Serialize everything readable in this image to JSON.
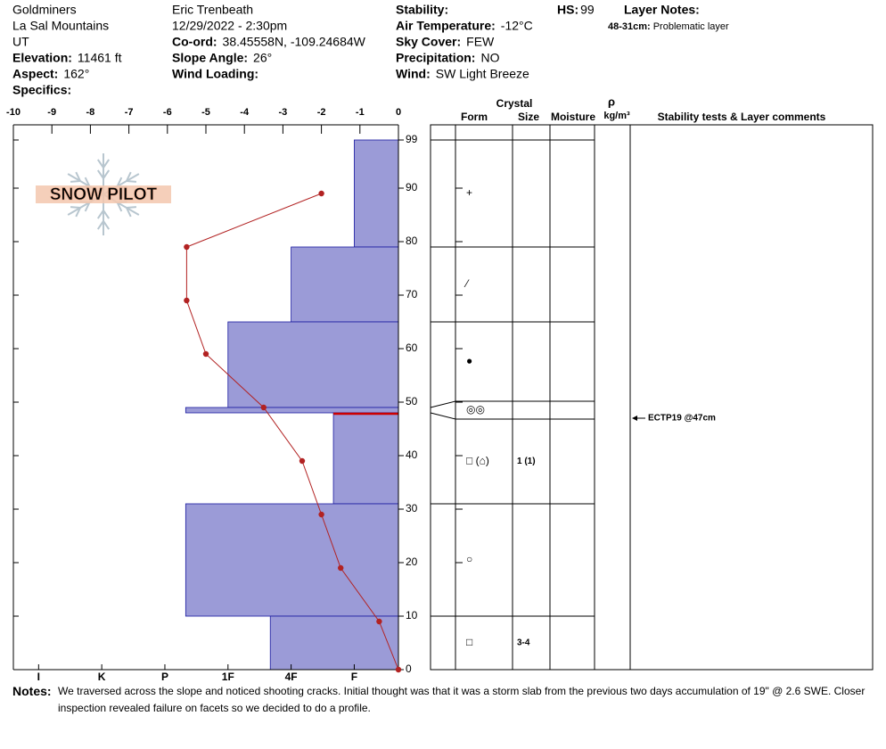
{
  "header": {
    "columns": [
      [
        {
          "value": "Goldminers"
        },
        {
          "value": "La Sal Mountains"
        },
        {
          "value": "UT"
        },
        {
          "label": "Elevation:",
          "value": "11461 ft"
        },
        {
          "label": "Aspect:",
          "value": "162°"
        },
        {
          "label": "Specifics:"
        }
      ],
      [
        {
          "value": "Eric Trenbeath"
        },
        {
          "value": "12/29/2022 - 2:30pm"
        },
        {
          "label": "Co-ord:",
          "value": "38.45558N, -109.24684W"
        },
        {
          "label": "Slope Angle:",
          "value": "26°"
        },
        {
          "label": "Wind Loading:"
        }
      ],
      [
        {
          "label": "Stability:"
        },
        {
          "label": "Air Temperature:",
          "value": "-12°C"
        },
        {
          "label": "Sky Cover:",
          "value": "FEW"
        },
        {
          "label": "Precipitation:",
          "value": "NO"
        },
        {
          "label": "Wind:",
          "value": "SW Light Breeze"
        }
      ]
    ],
    "hs": {
      "label": "HS:",
      "value": "99"
    },
    "layer_notes": {
      "title": "Layer Notes:",
      "items": [
        {
          "depth": "48-31cm:",
          "text": "Problematic layer"
        }
      ]
    }
  },
  "chart_data": {
    "type": "snow-profile",
    "logo": "SNOW PILOT",
    "xlim": [
      -10,
      0
    ],
    "xticks": [
      -10,
      -9,
      -8,
      -7,
      -6,
      -5,
      -4,
      -3,
      -2,
      -1,
      0
    ],
    "ylim": [
      0,
      99
    ],
    "yticks": [
      0,
      10,
      20,
      30,
      40,
      50,
      60,
      70,
      80,
      90,
      99
    ],
    "hardness_lim": [
      6.4,
      0.3
    ],
    "hardness_ticks": [
      {
        "value": 6,
        "label": "I"
      },
      {
        "value": 5,
        "label": "K"
      },
      {
        "value": 4,
        "label": "P"
      },
      {
        "value": 3,
        "label": "1F"
      },
      {
        "value": 2,
        "label": "4F"
      },
      {
        "value": 1,
        "label": "F"
      }
    ],
    "temperature": {
      "color": "#b22222",
      "depth": [
        0,
        9,
        19,
        29,
        39,
        49,
        59,
        69,
        79,
        89
      ],
      "values": [
        0,
        -0.5,
        -1.5,
        -2,
        -2.5,
        -3.5,
        -5,
        -5.5,
        -5.5,
        -2
      ]
    },
    "layers": {
      "color": "#9b9bd7",
      "top": [
        99,
        79,
        65,
        49,
        48,
        31,
        10
      ],
      "bottom": [
        79,
        65,
        49,
        48,
        31,
        10,
        0
      ],
      "hardness": [
        1,
        2,
        3,
        3.67,
        1.33,
        3.67,
        2.33
      ],
      "forms": [
        "+",
        "⁄",
        "●",
        "◎◎",
        "□ (⌂)",
        "○",
        "□"
      ],
      "sizes": [
        null,
        null,
        null,
        null,
        "1 (1)",
        null,
        "3-4"
      ]
    },
    "problem_layer": {
      "depth": 48,
      "color": "#cc0000"
    },
    "table_headers": {
      "crystal": "Crystal",
      "form": "Form",
      "size": "Size",
      "moisture": "Moisture",
      "rho": "ρ",
      "density_unit": "kg/m³",
      "comments": "Stability tests & Layer comments"
    },
    "tests": [
      {
        "label": "ECTP19 @47cm",
        "depth": 47
      }
    ]
  },
  "notes": {
    "label": "Notes:",
    "text": "We traversed across the slope and noticed shooting cracks. Initial thought was that it was a storm slab from the previous two days accumulation of 19\" @ 2.6 SWE. Closer inspection revealed failure on facets so we decided to do a profile."
  }
}
